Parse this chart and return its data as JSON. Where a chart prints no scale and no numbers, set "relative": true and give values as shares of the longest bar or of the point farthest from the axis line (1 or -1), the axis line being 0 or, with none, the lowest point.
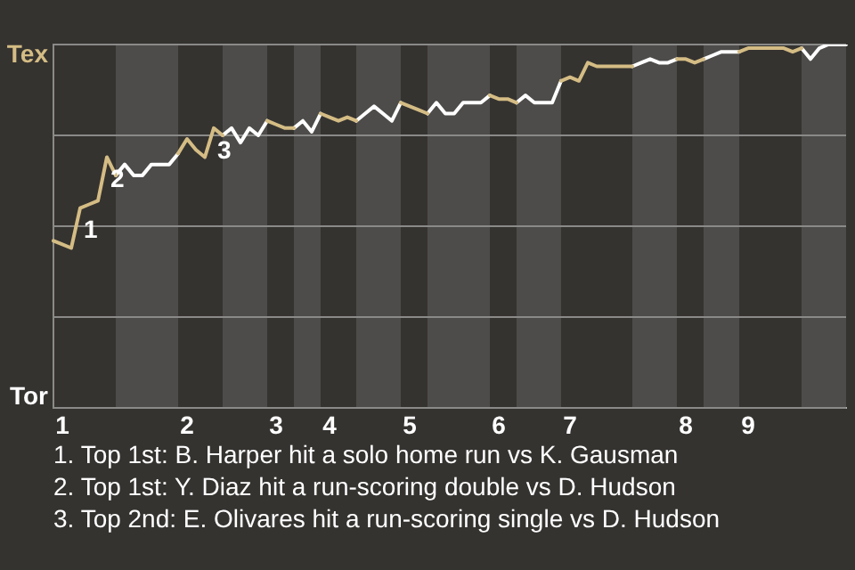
{
  "chart_data": {
    "type": "line",
    "relative": true,
    "annotations": [
      {
        "text": "1",
        "y": 0.55
      },
      {
        "text": "2",
        "y": 0.69
      },
      {
        "text": "3",
        "y": 0.77
      },
      "1. Top 1st: B. Harper hit a solo home run vs K. Gausman",
      "2. Top 1st: Y. Diaz hit a run-scoring double vs D. Hudson",
      "3. Top 2nd: E. Olivares hit a run-scoring single vs D. Hudson"
    ],
    "categories": [
      null,
      "1",
      null,
      null,
      null,
      null,
      null,
      null,
      null,
      null,
      null,
      null,
      null,
      null,
      null,
      "2",
      null,
      null,
      null,
      null,
      null,
      null,
      null,
      null,
      null,
      "3",
      null,
      null,
      null,
      null,
      null,
      "4",
      null,
      null,
      null,
      null,
      null,
      null,
      null,
      null,
      "5",
      null,
      null,
      null,
      null,
      null,
      null,
      null,
      null,
      null,
      "6",
      null,
      null,
      null,
      null,
      null,
      null,
      null,
      "7",
      null,
      null,
      null,
      null,
      null,
      null,
      null,
      null,
      null,
      null,
      null,
      null,
      "8",
      null,
      null,
      null,
      null,
      null,
      null,
      "9",
      null,
      null,
      null,
      null,
      null,
      null,
      null,
      null,
      null,
      null,
      null
    ],
    "series": [
      {
        "color": "#d4bc84",
        "values": [
          0.46,
          0.45,
          0.44,
          0.55,
          0.56,
          0.57,
          0.69,
          0.64,
          null,
          null,
          null,
          null,
          null,
          null,
          0.7,
          0.74,
          0.71,
          0.69,
          0.77,
          0.75,
          null,
          null,
          null,
          null,
          0.79,
          0.78,
          0.77,
          0.77,
          null,
          null,
          0.81,
          0.8,
          0.79,
          0.8,
          0.79,
          null,
          null,
          null,
          null,
          0.84,
          0.83,
          0.82,
          0.81,
          null,
          null,
          null,
          null,
          null,
          null,
          0.86,
          0.85,
          0.85,
          0.84,
          null,
          null,
          null,
          null,
          0.9,
          0.91,
          0.9,
          0.95,
          0.94,
          0.94,
          0.94,
          0.94,
          0.94,
          null,
          null,
          null,
          null,
          0.96,
          0.96,
          0.95,
          0.96,
          null,
          null,
          null,
          0.98,
          0.99,
          0.99,
          0.99,
          0.99,
          0.99,
          0.98,
          0.99,
          null,
          null,
          null,
          null,
          null
        ]
      },
      {
        "color": "#ffffff",
        "values": [
          null,
          null,
          null,
          null,
          null,
          null,
          null,
          0.64,
          0.67,
          0.64,
          0.64,
          0.67,
          0.67,
          0.67,
          0.7,
          null,
          null,
          null,
          null,
          0.75,
          0.77,
          0.73,
          0.77,
          0.75,
          0.79,
          null,
          null,
          0.77,
          0.79,
          0.76,
          0.81,
          null,
          null,
          null,
          0.79,
          0.81,
          0.83,
          0.81,
          0.79,
          0.84,
          null,
          null,
          0.81,
          0.84,
          0.81,
          0.81,
          0.84,
          0.84,
          0.84,
          0.86,
          null,
          null,
          0.84,
          0.86,
          0.84,
          0.84,
          0.84,
          0.9,
          null,
          null,
          null,
          null,
          null,
          null,
          null,
          0.94,
          0.95,
          0.96,
          0.95,
          0.95,
          0.96,
          null,
          null,
          0.96,
          0.97,
          0.98,
          0.98,
          0.98,
          null,
          null,
          null,
          null,
          null,
          null,
          0.99,
          0.96,
          0.99,
          1,
          1,
          1
        ]
      }
    ],
    "grid": false,
    "legend": false,
    "marker": "none",
    "line_style": "solid",
    "ref_lines": [
      {
        "axis": "y",
        "value": 0,
        "label": "Tor"
      },
      {
        "axis": "y",
        "value": 0.25,
        "label": null
      },
      {
        "axis": "y",
        "value": 0.5,
        "label": null
      },
      {
        "axis": "y",
        "value": 0.75,
        "label": null
      },
      {
        "axis": "y",
        "value": 1,
        "label": "Tex"
      }
    ]
  }
}
